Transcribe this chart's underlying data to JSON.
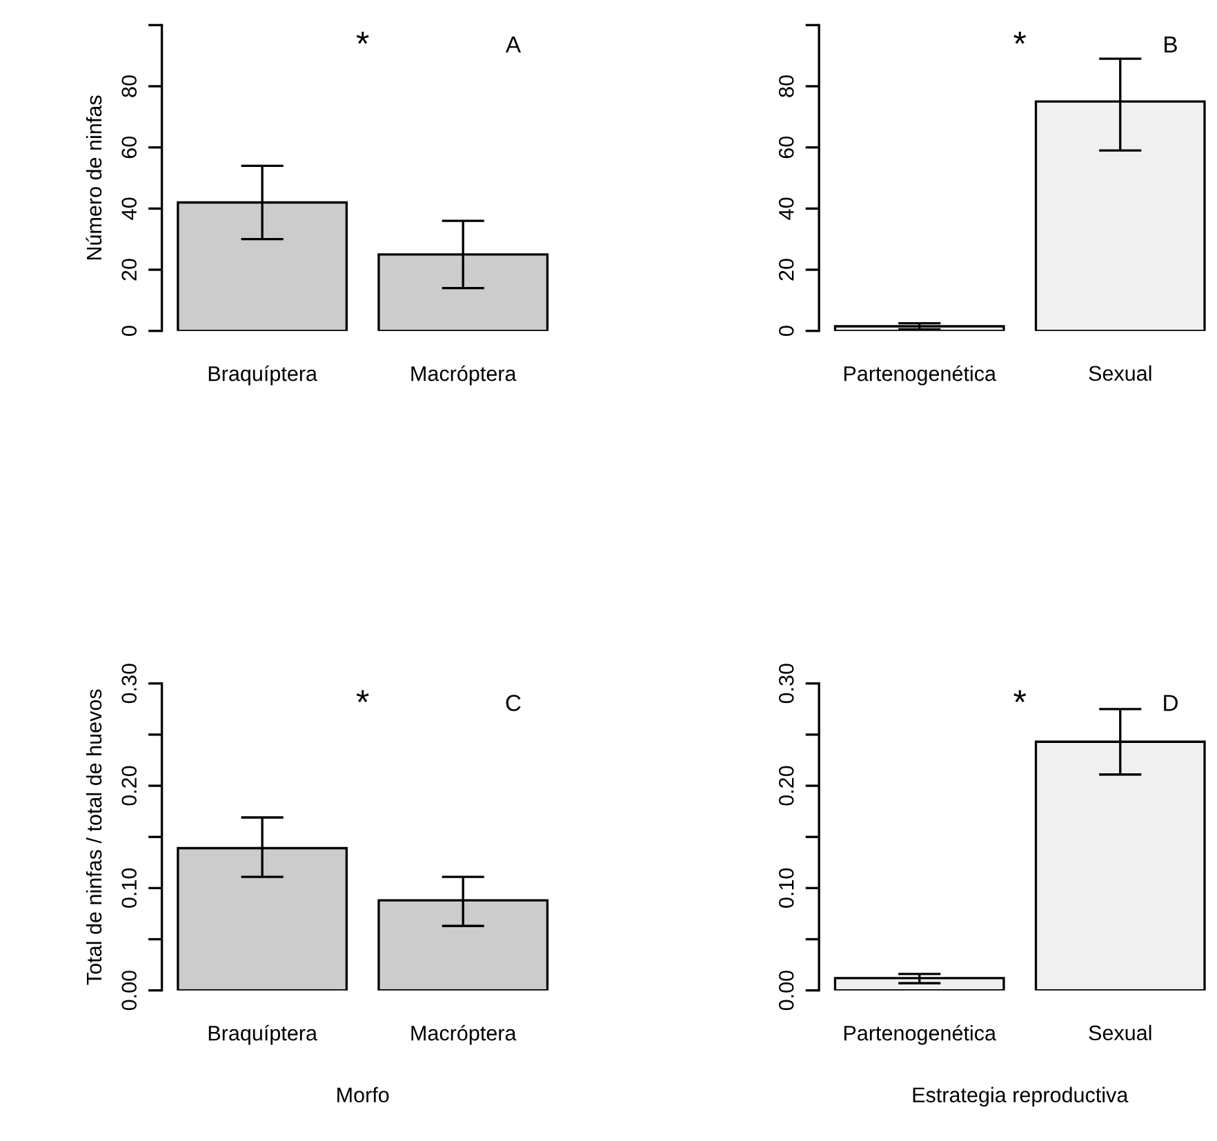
{
  "chart_data": [
    {
      "type": "bar",
      "categories": [
        "Braquíptera",
        "Macróptera"
      ],
      "ylabel": "Número de ninfas",
      "color": "#cccccc",
      "values": [
        42,
        25
      ],
      "errors": [
        [
          30,
          54
        ],
        [
          14,
          36
        ]
      ],
      "ylim": [
        0,
        100
      ],
      "yticks": [
        0,
        20,
        40,
        60,
        80,
        {
          "value": 100,
          "label": null
        }
      ],
      "annotations": [
        "*",
        "A"
      ],
      "grid": false,
      "legend": false
    },
    {
      "type": "bar",
      "categories": [
        "Partenogenética",
        "Sexual"
      ],
      "color": "#f0f0f0",
      "values": [
        1.5,
        75
      ],
      "errors": [
        [
          0.5,
          2.5
        ],
        [
          59,
          89
        ]
      ],
      "ylim": [
        0,
        100
      ],
      "yticks": [
        0,
        20,
        40,
        60,
        80,
        {
          "value": 100,
          "label": null
        }
      ],
      "annotations": [
        "*",
        "B"
      ],
      "grid": false,
      "legend": false
    },
    {
      "type": "bar",
      "categories": [
        "Braquíptera",
        "Macróptera"
      ],
      "ylabel": "Total de ninfas / total de huevos",
      "xlabel": "Morfo",
      "color": "#cccccc",
      "values": [
        0.139,
        0.088
      ],
      "errors": [
        [
          0.111,
          0.169
        ],
        [
          0.063,
          0.111
        ]
      ],
      "ylim": [
        0,
        0.3
      ],
      "yticks": [
        {
          "value": 0,
          "label": "0.00"
        },
        {
          "value": 0.05,
          "label": null
        },
        {
          "value": 0.1,
          "label": "0.10"
        },
        {
          "value": 0.15,
          "label": null
        },
        {
          "value": 0.2,
          "label": "0.20"
        },
        {
          "value": 0.25,
          "label": null
        },
        {
          "value": 0.3,
          "label": "0.30"
        }
      ],
      "annotations": [
        "*",
        "C"
      ],
      "grid": false,
      "legend": false
    },
    {
      "type": "bar",
      "categories": [
        "Partenogenética",
        "Sexual"
      ],
      "xlabel": "Estrategia reproductiva",
      "color": "#f0f0f0",
      "values": [
        0.012,
        0.243
      ],
      "errors": [
        [
          0.007,
          0.016
        ],
        [
          0.211,
          0.275
        ]
      ],
      "ylim": [
        0,
        0.3
      ],
      "yticks": [
        {
          "value": 0,
          "label": "0.00"
        },
        {
          "value": 0.05,
          "label": null
        },
        {
          "value": 0.1,
          "label": "0.10"
        },
        {
          "value": 0.15,
          "label": null
        },
        {
          "value": 0.2,
          "label": "0.20"
        },
        {
          "value": 0.25,
          "label": null
        },
        {
          "value": 0.3,
          "label": "0.30"
        }
      ],
      "annotations": [
        "*",
        "D"
      ],
      "grid": false,
      "legend": false
    }
  ]
}
